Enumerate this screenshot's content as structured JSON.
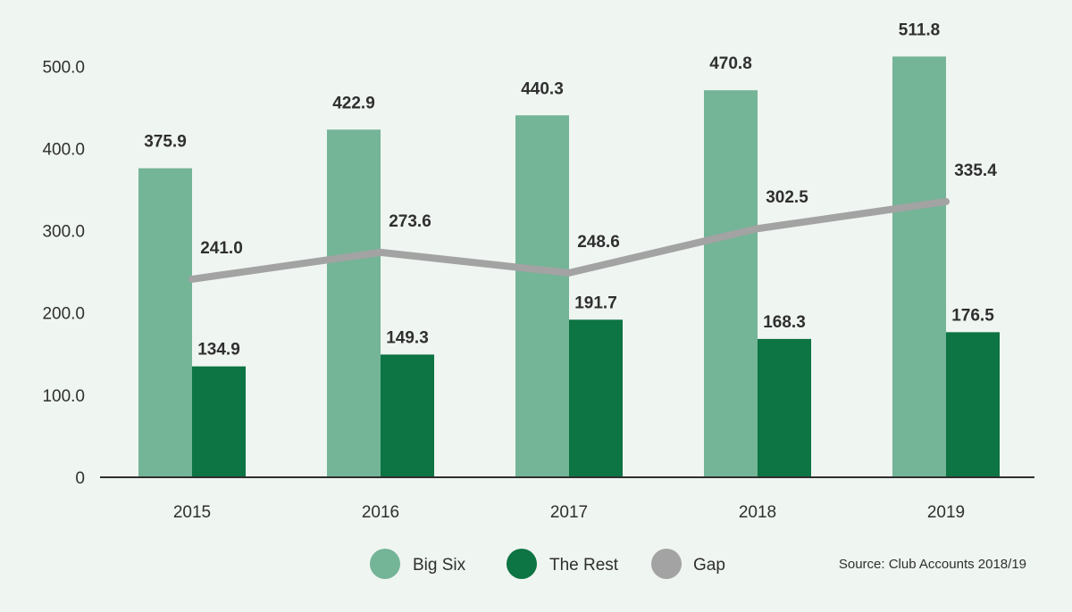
{
  "chart_data": {
    "type": "bar",
    "categories": [
      "2015",
      "2016",
      "2017",
      "2018",
      "2019"
    ],
    "series": [
      {
        "name": "Big Six",
        "kind": "bar",
        "color": "#74b497",
        "values": [
          375.9,
          422.9,
          440.3,
          470.8,
          511.8
        ]
      },
      {
        "name": "The Rest",
        "kind": "bar",
        "color": "#0d7443",
        "values": [
          134.9,
          149.3,
          191.7,
          168.3,
          176.5
        ]
      },
      {
        "name": "Gap",
        "kind": "line",
        "color": "#a3a3a3",
        "values": [
          241.0,
          273.6,
          248.6,
          302.5,
          335.4
        ]
      }
    ],
    "value_labels": {
      "Big Six": [
        "375.9",
        "422.9",
        "440.3",
        "470.8",
        "511.8"
      ],
      "The Rest": [
        "134.9",
        "149.3",
        "191.7",
        "168.3",
        "176.5"
      ],
      "Gap": [
        "241.0",
        "273.6",
        "248.6",
        "302.5",
        "335.4"
      ]
    },
    "y_ticks": [
      0,
      100,
      200,
      300,
      400,
      500
    ],
    "y_tick_labels": [
      "0",
      "100.0",
      "200.0",
      "300.0",
      "400.0",
      "500.0"
    ],
    "ylim": [
      0,
      540
    ],
    "grid": false,
    "legend_position": "bottom",
    "title": "",
    "xlabel": "",
    "ylabel": ""
  },
  "source_note": "Source: Club Accounts 2018/19"
}
